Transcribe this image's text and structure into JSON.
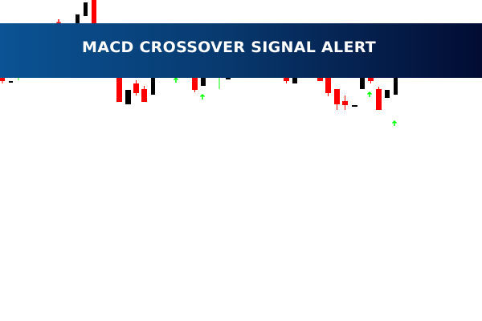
{
  "banner": {
    "title": "MACD CROSSOVER SIGNAL ALERT"
  },
  "colors": {
    "bearish": "#ff0000",
    "bullish": "#000000",
    "buy_arrow": "#00ff00",
    "sell_arrow": "#ff0000",
    "banner_left": "#0a5394",
    "banner_right": "#020c33"
  },
  "icons": {
    "buy_signal": "arrow-up-icon",
    "sell_signal": "arrow-down-icon"
  }
}
